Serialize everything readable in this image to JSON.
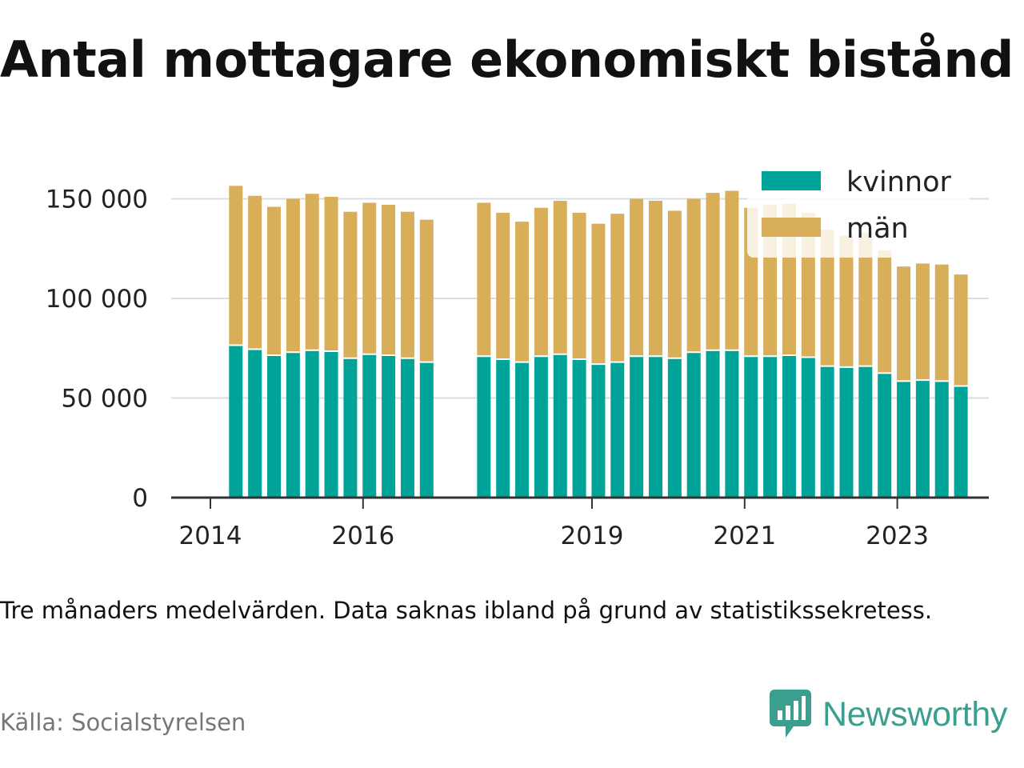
{
  "title": "Antal mottagare ekonomiskt bistånd",
  "note": "Tre månaders medelvärden. Data saknas ibland på grund av statistikssekretess.",
  "source": "Källa: Socialstyrelsen",
  "brand": {
    "name": "Newsworthy",
    "color": "#3a9f8f",
    "icon": "bar-chart-badge-icon"
  },
  "colors": {
    "kvinnor": "#00a398",
    "man": "#d9ae58",
    "grid": "#dddddd",
    "axis": "#333333"
  },
  "chart_data": {
    "type": "bar",
    "stacked": true,
    "x": [
      "2014-05",
      "2014-08",
      "2014-11",
      "2015-02",
      "2015-05",
      "2015-08",
      "2015-11",
      "2016-02",
      "2016-05",
      "2016-08",
      "2016-11",
      "2017-08",
      "2017-11",
      "2018-02",
      "2018-05",
      "2018-08",
      "2018-11",
      "2019-02",
      "2019-05",
      "2019-08",
      "2019-11",
      "2020-02",
      "2020-05",
      "2020-08",
      "2020-11",
      "2021-02",
      "2021-05",
      "2021-08",
      "2021-11",
      "2022-02",
      "2022-05",
      "2022-08",
      "2022-11",
      "2023-02",
      "2023-05",
      "2023-08",
      "2023-11"
    ],
    "series": [
      {
        "name": "kvinnor",
        "color": "#00a398",
        "values": [
          76500,
          74500,
          71500,
          73000,
          74000,
          73500,
          70000,
          72000,
          71500,
          70000,
          68000,
          71000,
          69500,
          68000,
          71000,
          72000,
          69500,
          67000,
          68000,
          71000,
          71000,
          70000,
          73000,
          74000,
          74000,
          71000,
          71000,
          71500,
          70500,
          66000,
          65500,
          66000,
          62500,
          58500,
          59000,
          58500,
          56000
        ]
      },
      {
        "name": "män",
        "color": "#d9ae58",
        "values": [
          80000,
          77000,
          74500,
          77000,
          78500,
          77500,
          73500,
          76000,
          75500,
          73500,
          71500,
          77000,
          73500,
          70500,
          74500,
          77000,
          73500,
          70500,
          74500,
          79000,
          78000,
          74000,
          77000,
          79000,
          80000,
          74500,
          76000,
          76000,
          72500,
          68500,
          66000,
          67000,
          61500,
          57500,
          58500,
          58500,
          56000
        ]
      }
    ],
    "xaxis": {
      "ticks": [
        "2014",
        "2016",
        "2019",
        "2021",
        "2023"
      ]
    },
    "yaxis": {
      "ticks": [
        "0",
        "50 000",
        "100 000",
        "150 000"
      ],
      "range": [
        0,
        160000
      ]
    },
    "legend": {
      "position": "top-right",
      "entries": [
        "kvinnor",
        "män"
      ]
    },
    "grid": {
      "y": true,
      "x": false
    }
  }
}
